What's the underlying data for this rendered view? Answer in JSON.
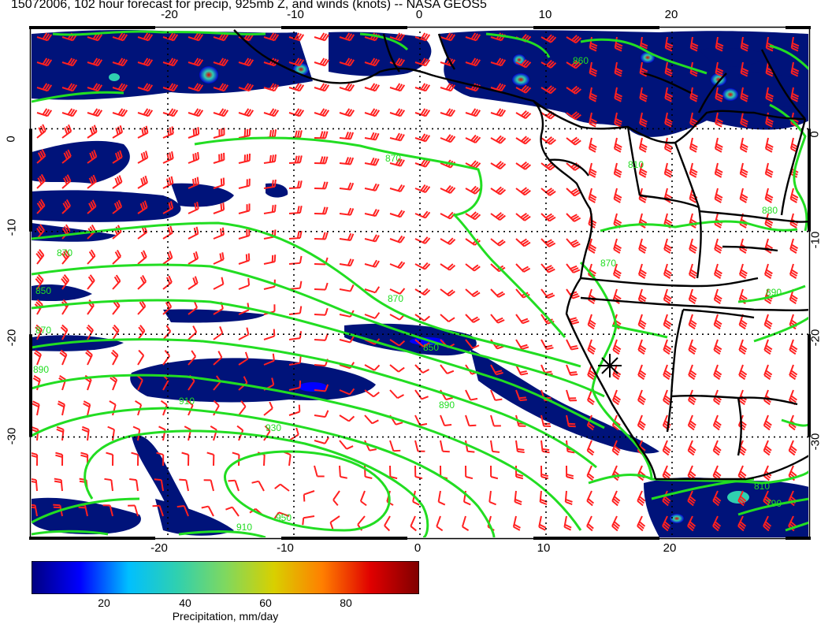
{
  "title": "15072006, 102 hour forecast for precip, 925mb Z, and winds (knots) -- NASA GEOS5",
  "map": {
    "lon_range": [
      -31,
      31
    ],
    "lat_range": [
      -40,
      10
    ],
    "lon_ticks": [
      "-20",
      "-10",
      "0",
      "10",
      "20"
    ],
    "lat_ticks": [
      "0",
      "-10",
      "-20",
      "-30"
    ],
    "lon_tick_values": [
      -20,
      -10,
      0,
      10,
      20
    ],
    "lat_tick_values": [
      0,
      -10,
      -20,
      -30
    ],
    "contour_color": "#22dd22",
    "barb_color": "#ff2020",
    "coast_color": "#000000",
    "contour_labels": [
      "870",
      "870",
      "850",
      "870",
      "890",
      "910",
      "930",
      "950",
      "910",
      "890",
      "870",
      "850",
      "810",
      "860",
      "870",
      "880",
      "890",
      "810",
      "790"
    ],
    "marker": "star-marker"
  },
  "colorbar": {
    "title": "Precipitation, mm/day",
    "ticks": [
      "20",
      "40",
      "60",
      "80"
    ],
    "tick_values": [
      20,
      40,
      60,
      80
    ],
    "range": [
      1,
      97
    ],
    "colors": [
      "#00007f",
      "#0000ff",
      "#00bfff",
      "#2fd0b0",
      "#7fd85f",
      "#d8d000",
      "#ff7f00",
      "#e00000",
      "#7f0000"
    ]
  }
}
